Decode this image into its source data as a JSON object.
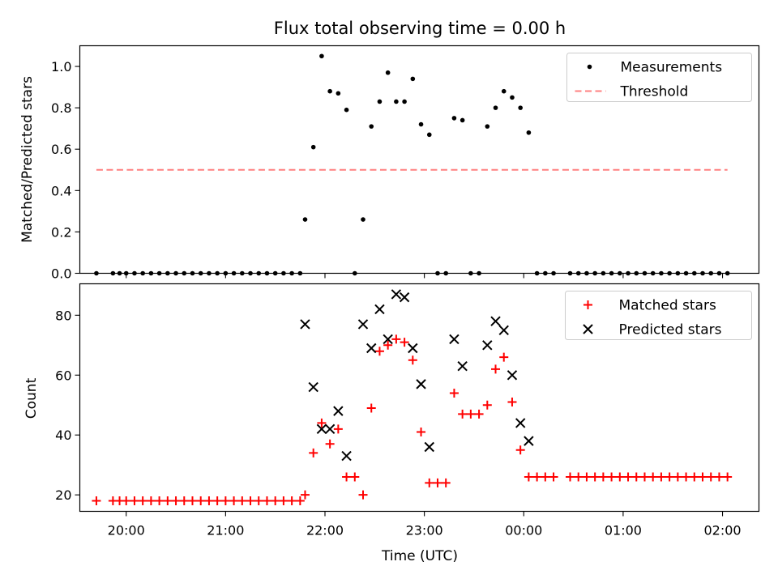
{
  "chart_data": [
    {
      "type": "scatter",
      "title": "Flux total observing time = 0.00 h",
      "ylabel": "Matched/Predicted stars",
      "xlabel": "",
      "ylim": [
        0,
        1.1
      ],
      "yticks": [
        "0.0",
        "0.2",
        "0.4",
        "0.6",
        "0.8",
        "1.0"
      ],
      "grid": false,
      "legend_position": "top-right",
      "series": [
        {
          "name": "Measurements",
          "marker": "dot",
          "color": "#000000",
          "points": [
            [
              "19:42",
              0.0
            ],
            [
              "19:52",
              0.0
            ],
            [
              "19:56",
              0.0
            ],
            [
              "20:00",
              0.0
            ],
            [
              "20:05",
              0.0
            ],
            [
              "20:10",
              0.0
            ],
            [
              "20:15",
              0.0
            ],
            [
              "20:20",
              0.0
            ],
            [
              "20:25",
              0.0
            ],
            [
              "20:30",
              0.0
            ],
            [
              "20:35",
              0.0
            ],
            [
              "20:40",
              0.0
            ],
            [
              "20:45",
              0.0
            ],
            [
              "20:50",
              0.0
            ],
            [
              "20:55",
              0.0
            ],
            [
              "21:00",
              0.0
            ],
            [
              "21:05",
              0.0
            ],
            [
              "21:10",
              0.0
            ],
            [
              "21:15",
              0.0
            ],
            [
              "21:20",
              0.0
            ],
            [
              "21:25",
              0.0
            ],
            [
              "21:30",
              0.0
            ],
            [
              "21:35",
              0.0
            ],
            [
              "21:40",
              0.0
            ],
            [
              "21:45",
              0.0
            ],
            [
              "21:48",
              0.26
            ],
            [
              "21:53",
              0.61
            ],
            [
              "21:58",
              1.05
            ],
            [
              "22:03",
              0.88
            ],
            [
              "22:08",
              0.87
            ],
            [
              "22:13",
              0.79
            ],
            [
              "22:18",
              0.0
            ],
            [
              "22:23",
              0.26
            ],
            [
              "22:28",
              0.71
            ],
            [
              "22:33",
              0.83
            ],
            [
              "22:38",
              0.97
            ],
            [
              "22:43",
              0.83
            ],
            [
              "22:48",
              0.83
            ],
            [
              "22:53",
              0.94
            ],
            [
              "22:58",
              0.72
            ],
            [
              "23:03",
              0.67
            ],
            [
              "23:08",
              0.0
            ],
            [
              "23:13",
              0.0
            ],
            [
              "23:18",
              0.75
            ],
            [
              "23:23",
              0.74
            ],
            [
              "23:28",
              0.0
            ],
            [
              "23:33",
              0.0
            ],
            [
              "23:38",
              0.71
            ],
            [
              "23:43",
              0.8
            ],
            [
              "23:48",
              0.88
            ],
            [
              "23:53",
              0.85
            ],
            [
              "23:58",
              0.8
            ],
            [
              "00:03",
              0.68
            ],
            [
              "00:08",
              0.0
            ],
            [
              "00:13",
              0.0
            ],
            [
              "00:18",
              0.0
            ],
            [
              "00:28",
              0.0
            ],
            [
              "00:33",
              0.0
            ],
            [
              "00:38",
              0.0
            ],
            [
              "00:43",
              0.0
            ],
            [
              "00:48",
              0.0
            ],
            [
              "00:53",
              0.0
            ],
            [
              "00:58",
              0.0
            ],
            [
              "01:03",
              0.0
            ],
            [
              "01:08",
              0.0
            ],
            [
              "01:13",
              0.0
            ],
            [
              "01:18",
              0.0
            ],
            [
              "01:23",
              0.0
            ],
            [
              "01:28",
              0.0
            ],
            [
              "01:33",
              0.0
            ],
            [
              "01:38",
              0.0
            ],
            [
              "01:43",
              0.0
            ],
            [
              "01:48",
              0.0
            ],
            [
              "01:53",
              0.0
            ],
            [
              "01:58",
              0.0
            ],
            [
              "02:03",
              0.0
            ]
          ]
        },
        {
          "name": "Threshold",
          "marker": "dashed-line",
          "color": "#ff8080",
          "points": [
            [
              "19:42",
              0.5
            ],
            [
              "02:03",
              0.5
            ]
          ]
        }
      ]
    },
    {
      "type": "scatter",
      "title": "",
      "ylabel": "Count",
      "xlabel": "Time (UTC)",
      "ylim": [
        14.5,
        90.5
      ],
      "yticks": [
        "20",
        "40",
        "60",
        "80"
      ],
      "xticks": [
        "20:00",
        "21:00",
        "22:00",
        "23:00",
        "00:00",
        "01:00",
        "02:00"
      ],
      "grid": false,
      "legend_position": "top-right",
      "series": [
        {
          "name": "Matched stars",
          "marker": "plus",
          "color": "#ff0000",
          "points": [
            [
              "19:42",
              18
            ],
            [
              "19:52",
              18
            ],
            [
              "19:56",
              18
            ],
            [
              "20:00",
              18
            ],
            [
              "20:05",
              18
            ],
            [
              "20:10",
              18
            ],
            [
              "20:15",
              18
            ],
            [
              "20:20",
              18
            ],
            [
              "20:25",
              18
            ],
            [
              "20:30",
              18
            ],
            [
              "20:35",
              18
            ],
            [
              "20:40",
              18
            ],
            [
              "20:45",
              18
            ],
            [
              "20:50",
              18
            ],
            [
              "20:55",
              18
            ],
            [
              "21:00",
              18
            ],
            [
              "21:05",
              18
            ],
            [
              "21:10",
              18
            ],
            [
              "21:15",
              18
            ],
            [
              "21:20",
              18
            ],
            [
              "21:25",
              18
            ],
            [
              "21:30",
              18
            ],
            [
              "21:35",
              18
            ],
            [
              "21:40",
              18
            ],
            [
              "21:45",
              18
            ],
            [
              "21:48",
              20
            ],
            [
              "21:53",
              34
            ],
            [
              "21:58",
              44
            ],
            [
              "22:03",
              37
            ],
            [
              "22:08",
              42
            ],
            [
              "22:13",
              26
            ],
            [
              "22:18",
              26
            ],
            [
              "22:23",
              20
            ],
            [
              "22:28",
              49
            ],
            [
              "22:33",
              68
            ],
            [
              "22:38",
              70
            ],
            [
              "22:43",
              72
            ],
            [
              "22:48",
              71
            ],
            [
              "22:53",
              65
            ],
            [
              "22:58",
              41
            ],
            [
              "23:03",
              24
            ],
            [
              "23:08",
              24
            ],
            [
              "23:13",
              24
            ],
            [
              "23:18",
              54
            ],
            [
              "23:23",
              47
            ],
            [
              "23:28",
              47
            ],
            [
              "23:33",
              47
            ],
            [
              "23:38",
              50
            ],
            [
              "23:43",
              62
            ],
            [
              "23:48",
              66
            ],
            [
              "23:53",
              51
            ],
            [
              "23:58",
              35
            ],
            [
              "00:03",
              26
            ],
            [
              "00:08",
              26
            ],
            [
              "00:13",
              26
            ],
            [
              "00:18",
              26
            ],
            [
              "00:28",
              26
            ],
            [
              "00:33",
              26
            ],
            [
              "00:38",
              26
            ],
            [
              "00:43",
              26
            ],
            [
              "00:48",
              26
            ],
            [
              "00:53",
              26
            ],
            [
              "00:58",
              26
            ],
            [
              "01:03",
              26
            ],
            [
              "01:08",
              26
            ],
            [
              "01:13",
              26
            ],
            [
              "01:18",
              26
            ],
            [
              "01:23",
              26
            ],
            [
              "01:28",
              26
            ],
            [
              "01:33",
              26
            ],
            [
              "01:38",
              26
            ],
            [
              "01:43",
              26
            ],
            [
              "01:48",
              26
            ],
            [
              "01:53",
              26
            ],
            [
              "01:58",
              26
            ],
            [
              "02:03",
              26
            ]
          ]
        },
        {
          "name": "Predicted stars",
          "marker": "x",
          "color": "#000000",
          "points": [
            [
              "21:48",
              77
            ],
            [
              "21:53",
              56
            ],
            [
              "21:58",
              42
            ],
            [
              "22:03",
              42
            ],
            [
              "22:08",
              48
            ],
            [
              "22:13",
              33
            ],
            [
              "22:23",
              77
            ],
            [
              "22:28",
              69
            ],
            [
              "22:33",
              82
            ],
            [
              "22:38",
              72
            ],
            [
              "22:43",
              87
            ],
            [
              "22:48",
              86
            ],
            [
              "22:53",
              69
            ],
            [
              "22:58",
              57
            ],
            [
              "23:03",
              36
            ],
            [
              "23:18",
              72
            ],
            [
              "23:23",
              63
            ],
            [
              "23:38",
              70
            ],
            [
              "23:43",
              78
            ],
            [
              "23:48",
              75
            ],
            [
              "23:53",
              60
            ],
            [
              "23:58",
              44
            ],
            [
              "00:03",
              38
            ]
          ]
        }
      ]
    }
  ]
}
